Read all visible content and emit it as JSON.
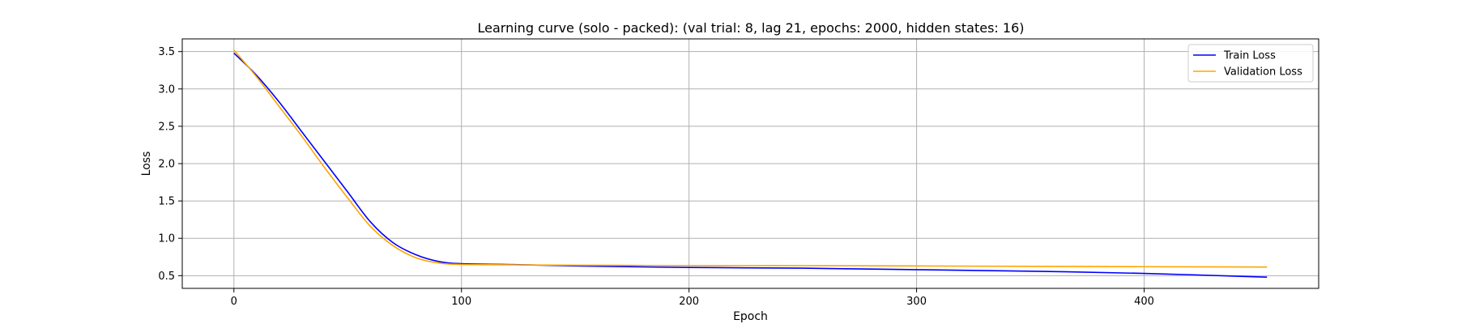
{
  "chart_data": {
    "type": "line",
    "title": "Learning curve (solo - packed): (val trial: 8, lag 21, epochs: 2000, hidden states: 16)",
    "xlabel": "Epoch",
    "ylabel": "Loss",
    "xlim": [
      -22.7,
      476.7
    ],
    "ylim": [
      0.33,
      3.67
    ],
    "xticks": [
      0,
      100,
      200,
      300,
      400
    ],
    "yticks": [
      0.5,
      1.0,
      1.5,
      2.0,
      2.5,
      3.0,
      3.5
    ],
    "xtick_labels": [
      "0",
      "100",
      "200",
      "300",
      "400"
    ],
    "ytick_labels": [
      "0.5",
      "1.0",
      "1.5",
      "2.0",
      "2.5",
      "3.0",
      "3.5"
    ],
    "grid": true,
    "legend_position": "top-right",
    "series": [
      {
        "name": "Train Loss",
        "color": "#0000ff",
        "x": [
          0,
          10,
          20,
          30,
          40,
          50,
          60,
          70,
          80,
          90,
          100,
          120,
          150,
          200,
          250,
          300,
          350,
          400,
          454
        ],
        "y": [
          3.48,
          3.18,
          2.82,
          2.42,
          2.02,
          1.62,
          1.22,
          0.94,
          0.78,
          0.69,
          0.66,
          0.65,
          0.63,
          0.61,
          0.6,
          0.58,
          0.56,
          0.53,
          0.48
        ]
      },
      {
        "name": "Validation Loss",
        "color": "#ffa500",
        "x": [
          0,
          10,
          20,
          30,
          40,
          50,
          60,
          70,
          80,
          90,
          100,
          120,
          150,
          200,
          250,
          300,
          350,
          400,
          454
        ],
        "y": [
          3.52,
          3.16,
          2.76,
          2.36,
          1.94,
          1.54,
          1.16,
          0.9,
          0.74,
          0.67,
          0.65,
          0.645,
          0.64,
          0.635,
          0.635,
          0.63,
          0.625,
          0.62,
          0.615
        ]
      }
    ]
  }
}
